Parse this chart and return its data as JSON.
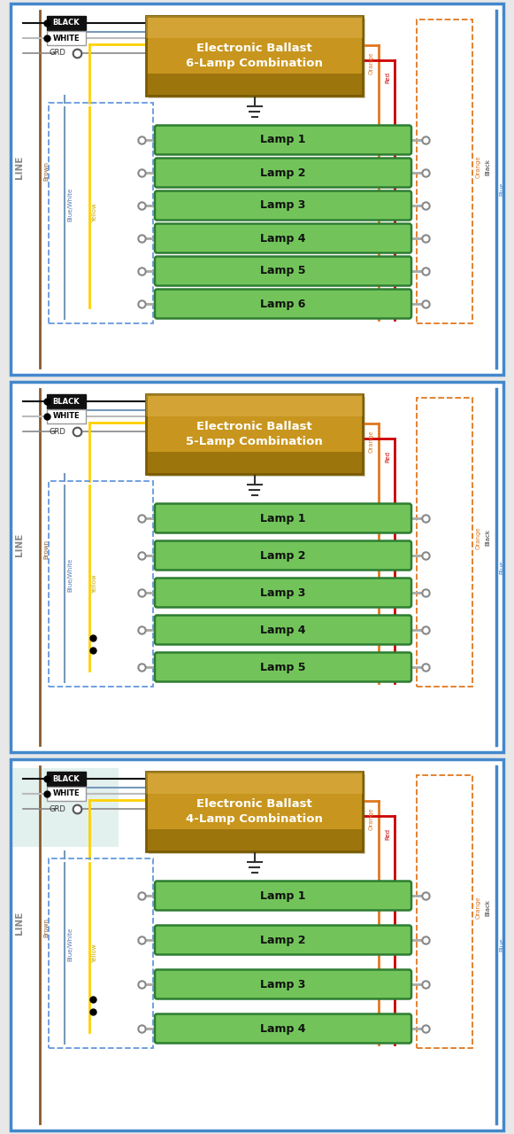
{
  "bg_color": "#E8E8E8",
  "panels": [
    {
      "title": "Electronic Ballast\n6-Lamp Combination",
      "num_lamps": 6
    },
    {
      "title": "Electronic Ballast\n5-Lamp Combination",
      "num_lamps": 5
    },
    {
      "title": "Electronic Ballast\n4-Lamp Combination",
      "num_lamps": 4
    }
  ],
  "colors": {
    "blue": "#4488CC",
    "blue_dash": "#6699DD",
    "orange": "#E07820",
    "orange2": "#CC6600",
    "brown": "#8B5A2B",
    "yellow": "#FFD000",
    "yellow_dark": "#C8A800",
    "red": "#CC0000",
    "black": "#111111",
    "white_wire": "#BBBBBB",
    "gray": "#888888",
    "gray2": "#AAAAAA",
    "lamp_green": "#72C45A",
    "lamp_green2": "#4A9A35",
    "lamp_border": "#2E7D32",
    "ballast_gold": "#C8961E",
    "ballast_shadow": "#7A5A00",
    "ballast_light": "#E8C060",
    "panel_bg": "#FFFFFF",
    "teal_bg": "#B0D8D0"
  },
  "lw": {
    "border": 2.5,
    "wire_thick": 2.0,
    "wire_med": 1.5,
    "wire_thin": 1.2,
    "lamp": 1.8
  }
}
